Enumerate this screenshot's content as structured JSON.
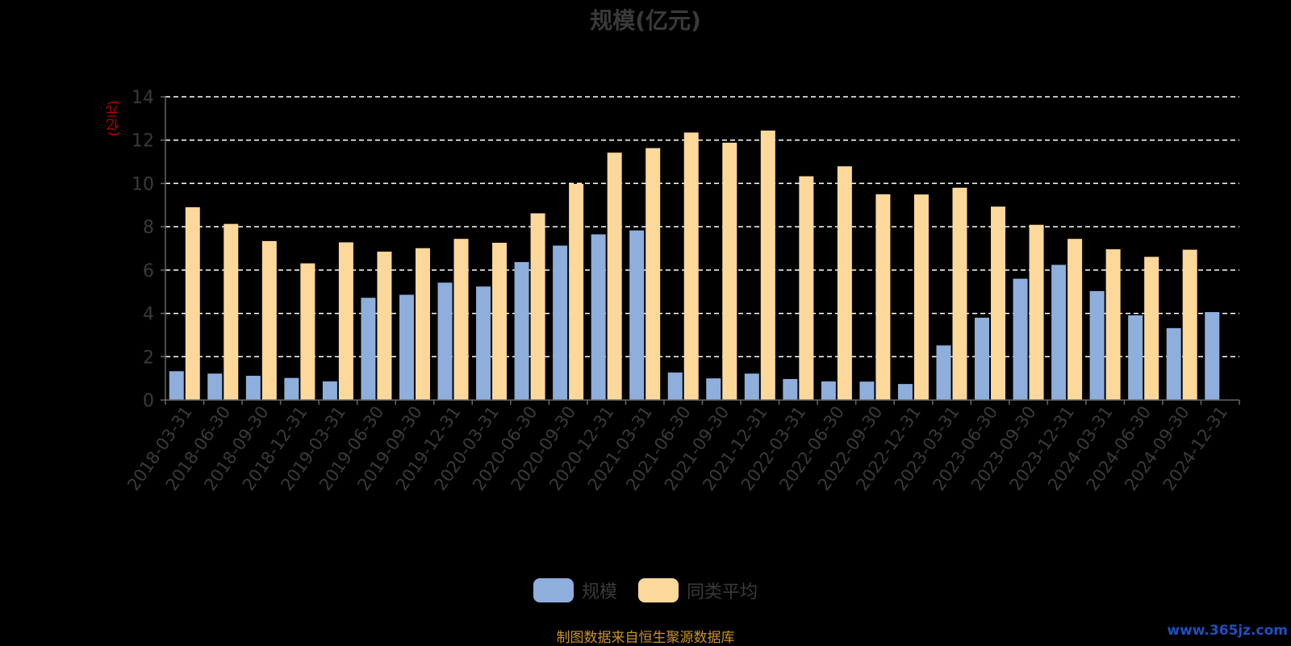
{
  "title": "规模(亿元)",
  "y_unit": "(亿元)",
  "source_note": "制图数据来自恒生聚源数据库",
  "watermark": "www.365jz.com",
  "colors": {
    "scale": "#8eaedc",
    "avg": "#fdd89b",
    "grid": "#ffffff",
    "axis": "#666666",
    "tick_text": "#3a3a3a"
  },
  "chart_data": {
    "type": "bar",
    "title": "规模(亿元)",
    "ylabel": "(亿元)",
    "ylim": [
      0,
      14
    ],
    "yticks": [
      0,
      2,
      4,
      6,
      8,
      10,
      12,
      14
    ],
    "grid": true,
    "legend_position": "bottom-center",
    "categories": [
      "2018-03-31",
      "2018-06-30",
      "2018-09-30",
      "2018-12-31",
      "2019-03-31",
      "2019-06-30",
      "2019-09-30",
      "2019-12-31",
      "2020-03-31",
      "2020-06-30",
      "2020-09-30",
      "2020-12-31",
      "2021-03-31",
      "2021-06-30",
      "2021-09-30",
      "2021-12-31",
      "2022-03-31",
      "2022-06-30",
      "2022-09-30",
      "2022-12-31",
      "2023-03-31",
      "2023-06-30",
      "2023-09-30",
      "2023-12-31",
      "2024-03-31",
      "2024-06-30",
      "2024-09-30",
      "2024-12-31"
    ],
    "series": [
      {
        "name": "规模",
        "color": "#8eaedc",
        "values": [
          1.33,
          1.22,
          1.12,
          1.02,
          0.86,
          4.72,
          4.86,
          5.42,
          5.24,
          6.37,
          7.13,
          7.65,
          7.83,
          1.27,
          1.0,
          1.22,
          0.97,
          0.86,
          0.85,
          0.74,
          2.52,
          3.8,
          5.6,
          6.24,
          5.03,
          3.91,
          3.32,
          4.06
        ]
      },
      {
        "name": "同类平均",
        "color": "#fdd89b",
        "values": [
          8.9,
          8.13,
          7.34,
          6.31,
          7.28,
          6.85,
          7.01,
          7.44,
          7.26,
          8.62,
          9.98,
          11.42,
          11.63,
          12.35,
          11.88,
          12.44,
          10.33,
          10.79,
          9.5,
          9.49,
          9.8,
          8.93,
          8.09,
          7.44,
          6.96,
          6.61,
          6.94,
          null
        ]
      }
    ]
  }
}
